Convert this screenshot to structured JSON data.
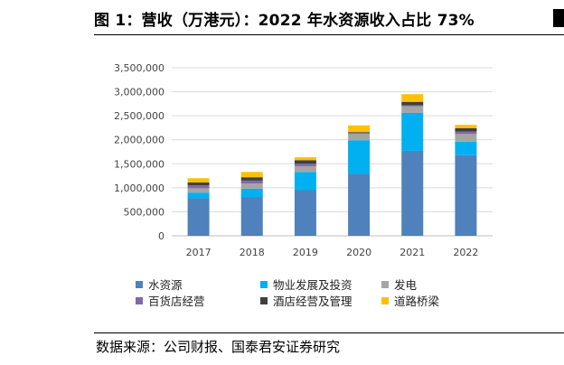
{
  "header": {
    "title": "图 1：营收（万港元）：2022 年水资源收入占比 73%"
  },
  "footer": {
    "source": "数据来源：公司财报、国泰君安证券研究"
  },
  "chart_data": {
    "type": "bar",
    "stacked": true,
    "categories": [
      "2017",
      "2018",
      "2019",
      "2020",
      "2021",
      "2022"
    ],
    "ylim": [
      0,
      3500000
    ],
    "yticks": [
      "0",
      "500,000",
      "1,000,000",
      "1,500,000",
      "2,000,000",
      "2,500,000",
      "3,000,000",
      "3,500,000"
    ],
    "ytick_values": [
      0,
      500000,
      1000000,
      1500000,
      2000000,
      2500000,
      3000000,
      3500000
    ],
    "grid": true,
    "legend_position": "bottom",
    "series": [
      {
        "name": "水资源",
        "color": "#4f81bd",
        "values": [
          780000,
          800000,
          950000,
          1290000,
          1770000,
          1680000
        ]
      },
      {
        "name": "物业发展及投资",
        "color": "#00b0f0",
        "values": [
          120000,
          180000,
          380000,
          700000,
          790000,
          280000
        ]
      },
      {
        "name": "发电",
        "color": "#a5a5a5",
        "values": [
          90000,
          110000,
          120000,
          130000,
          140000,
          160000
        ]
      },
      {
        "name": "百货店经营",
        "color": "#7f6aa6",
        "values": [
          60000,
          60000,
          55000,
          20000,
          20000,
          50000
        ]
      },
      {
        "name": "酒店经营及管理",
        "color": "#404040",
        "values": [
          60000,
          70000,
          70000,
          20000,
          70000,
          70000
        ]
      },
      {
        "name": "道路桥梁",
        "color": "#ffc000",
        "values": [
          90000,
          110000,
          60000,
          140000,
          160000,
          70000
        ]
      }
    ]
  }
}
